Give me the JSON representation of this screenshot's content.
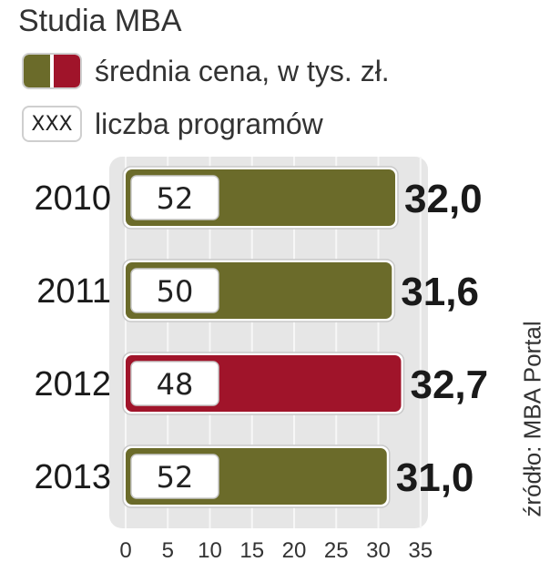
{
  "title": "Studia MBA",
  "legend": {
    "price_label": "średnia cena, w tys. zł.",
    "count_box_text": "XXX",
    "count_label": "liczba programów"
  },
  "source": "źródło: MBA Portal",
  "colors": {
    "olive": "#6b6b2a",
    "red": "#a0142a",
    "panel": "#e6e6e6"
  },
  "chart_data": {
    "type": "bar",
    "orientation": "horizontal",
    "categories": [
      "2010",
      "2011",
      "2012",
      "2013"
    ],
    "series": [
      {
        "name": "średnia cena, w tys. zł.",
        "values": [
          32.0,
          31.6,
          32.7,
          31.0
        ],
        "value_labels": [
          "32,0",
          "31,6",
          "32,7",
          "31,0"
        ]
      },
      {
        "name": "liczba programów",
        "values": [
          52,
          50,
          48,
          52
        ]
      }
    ],
    "highlight_index": 2,
    "x_ticks": [
      0,
      5,
      10,
      15,
      20,
      25,
      30,
      35
    ],
    "xlim": [
      0,
      35
    ],
    "grid": true
  }
}
